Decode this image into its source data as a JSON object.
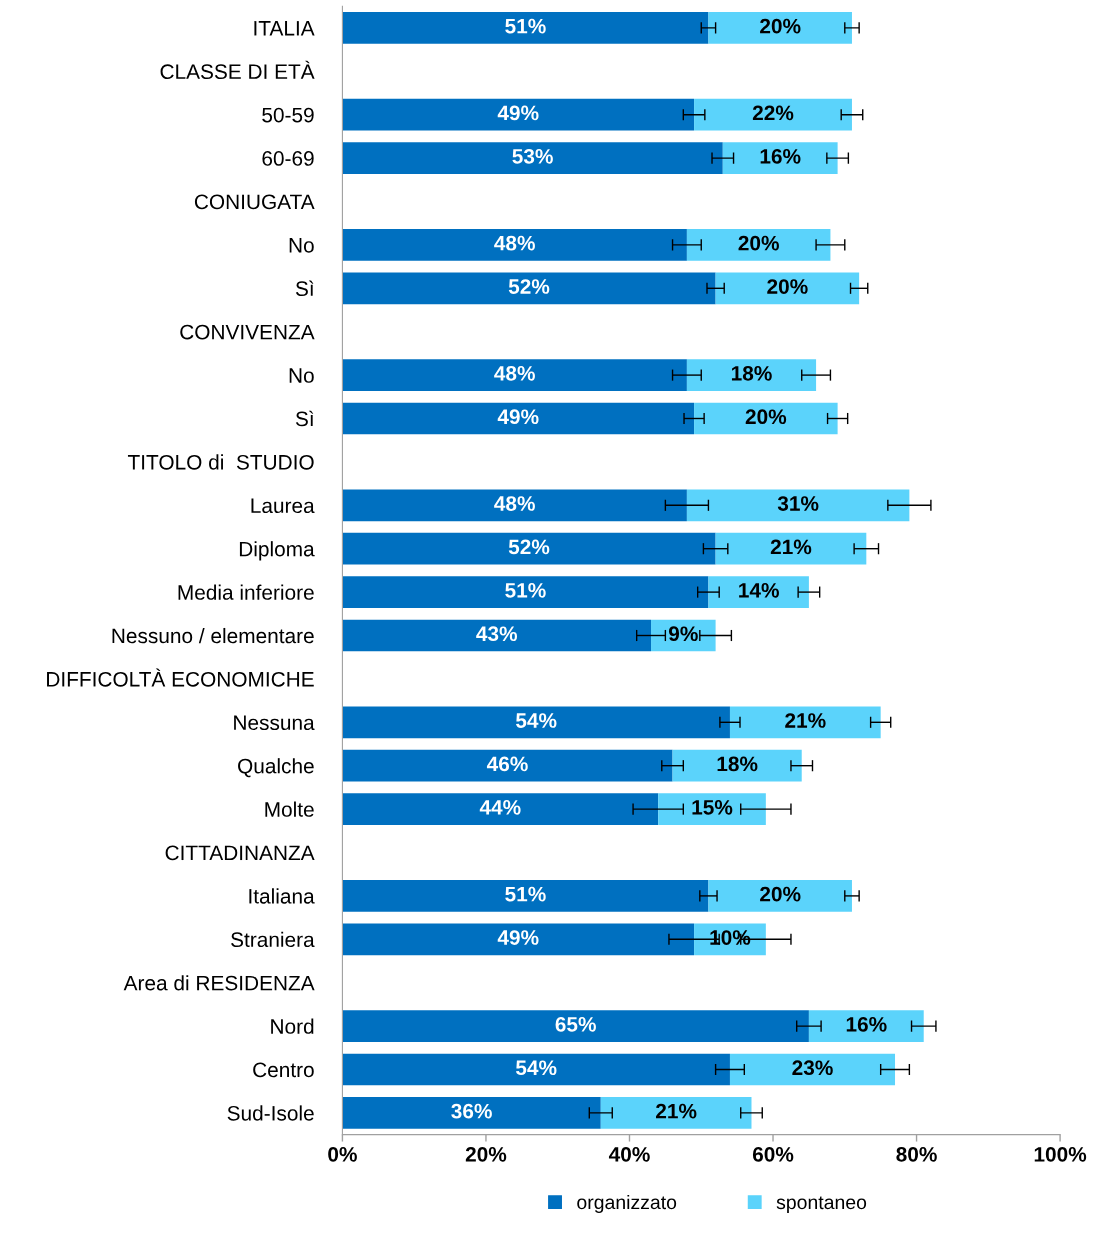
{
  "chart_data": {
    "type": "bar",
    "orientation": "horizontal",
    "stacked": true,
    "categories": [
      "ITALIA",
      "CLASSE DI ETÀ",
      "50-59",
      "60-69",
      "CONIUGATA",
      "No",
      "Sì",
      "CONVIVENZA",
      "No",
      "Sì",
      "TITOLO di  STUDIO",
      "Laurea",
      "Diploma",
      "Media inferiore",
      "Nessuno / elementare",
      "DIFFICOLTÀ ECONOMICHE",
      "Nessuna",
      "Qualche",
      "Molte",
      "CITTADINANZA",
      "Italiana",
      "Straniera",
      "Area di RESIDENZA",
      "Nord",
      "Centro",
      "Sud-Isole"
    ],
    "series": [
      {
        "name": "organizzato",
        "color": "#0070c0",
        "values": [
          51,
          null,
          49,
          53,
          null,
          48,
          52,
          null,
          48,
          49,
          null,
          48,
          52,
          51,
          43,
          null,
          54,
          46,
          44,
          null,
          51,
          49,
          null,
          65,
          54,
          36
        ],
        "value_labels": [
          "51%",
          null,
          "49%",
          "53%",
          null,
          "48%",
          "52%",
          null,
          "48%",
          "49%",
          null,
          "48%",
          "52%",
          "51%",
          "43%",
          null,
          "54%",
          "46%",
          "44%",
          null,
          "51%",
          "49%",
          null,
          "65%",
          "54%",
          "36%"
        ],
        "errors": [
          1,
          null,
          1.5,
          1.5,
          null,
          2,
          1.2,
          null,
          2,
          1.4,
          null,
          3,
          1.7,
          1.5,
          2,
          null,
          1.4,
          1.5,
          3.5,
          null,
          1.2,
          3.5,
          null,
          1.7,
          2,
          1.6
        ]
      },
      {
        "name": "spontaneo",
        "color": "#5bd3fb",
        "values": [
          20,
          null,
          22,
          16,
          null,
          20,
          20,
          null,
          18,
          20,
          null,
          31,
          21,
          14,
          9,
          null,
          21,
          18,
          15,
          null,
          20,
          10,
          null,
          16,
          23,
          21
        ],
        "value_labels": [
          "20%",
          null,
          "22%",
          "16%",
          null,
          "20%",
          "20%",
          null,
          "18%",
          "20%",
          null,
          "31%",
          "21%",
          "14%",
          "9%",
          null,
          "21%",
          "18%",
          "15%",
          null,
          "20%",
          "10%",
          null,
          "16%",
          "23%",
          "21%"
        ],
        "errors": [
          1,
          null,
          1.5,
          1.5,
          null,
          2,
          1.2,
          null,
          2,
          1.4,
          null,
          3,
          1.7,
          1.5,
          2.2,
          null,
          1.4,
          1.5,
          3.5,
          null,
          1,
          3.5,
          null,
          1.7,
          2,
          1.5
        ]
      }
    ],
    "xlim": [
      0,
      100
    ],
    "xticks": [
      {
        "value": 0,
        "label": "0%"
      },
      {
        "value": 20,
        "label": "20%"
      },
      {
        "value": 40,
        "label": "40%"
      },
      {
        "value": 60,
        "label": "60%"
      },
      {
        "value": 80,
        "label": "80%"
      },
      {
        "value": 100,
        "label": "100%"
      }
    ],
    "legend": "bottom",
    "marker": "square",
    "grid": false
  }
}
